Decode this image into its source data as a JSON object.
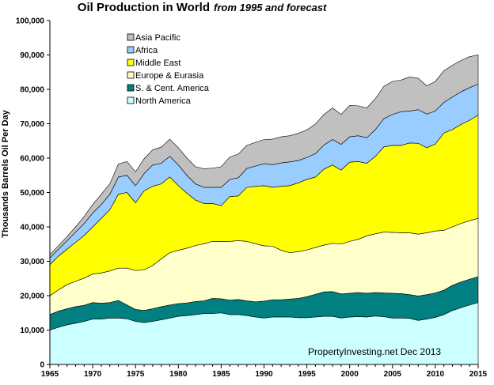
{
  "chart_data": {
    "type": "area",
    "stacked": true,
    "title": "Oil Production  in World",
    "subtitle": "from 1995 and forecast",
    "ylabel": "Thousands Barrels Oil Per Day",
    "xlabel": "",
    "annotation": "PropertyInvesting.net  Dec 2013",
    "xlim": [
      1965,
      2015
    ],
    "ylim": [
      0,
      100000
    ],
    "x_ticks": [
      "1965",
      "1970",
      "1975",
      "1980",
      "1985",
      "1990",
      "1995",
      "2000",
      "2005",
      "2010",
      "2015"
    ],
    "y_ticks": [
      "0",
      "10,000",
      "20,000",
      "30,000",
      "40,000",
      "50,000",
      "60,000",
      "70,000",
      "80,000",
      "90,000",
      "100,000"
    ],
    "grid": false,
    "legend_position": "top-left",
    "x": [
      1965,
      1966,
      1967,
      1968,
      1969,
      1970,
      1971,
      1972,
      1973,
      1974,
      1975,
      1976,
      1977,
      1978,
      1979,
      1980,
      1981,
      1982,
      1983,
      1984,
      1985,
      1986,
      1987,
      1988,
      1989,
      1990,
      1991,
      1992,
      1993,
      1994,
      1995,
      1996,
      1997,
      1998,
      1999,
      2000,
      2001,
      2002,
      2003,
      2004,
      2005,
      2006,
      2007,
      2008,
      2009,
      2010,
      2011,
      2012,
      2013,
      2014,
      2015
    ],
    "series": [
      {
        "name": "North America",
        "color": "#ccffff",
        "cumulative": [
          10000,
          10800,
          11500,
          12000,
          12500,
          13200,
          13200,
          13500,
          13500,
          13300,
          12500,
          12200,
          12500,
          13000,
          13500,
          14000,
          14200,
          14500,
          14800,
          14800,
          15000,
          14500,
          14500,
          14200,
          13800,
          13500,
          13800,
          13800,
          13800,
          13600,
          13600,
          13800,
          14000,
          14000,
          13500,
          13800,
          13900,
          13800,
          14100,
          13900,
          13500,
          13500,
          13400,
          12800,
          13200,
          13700,
          14500,
          15700,
          16500,
          17300,
          18000
        ]
      },
      {
        "name": "S. & Cent. America",
        "color": "#008080",
        "cumulative": [
          14500,
          15500,
          16200,
          16800,
          17200,
          18000,
          17800,
          18000,
          18600,
          17300,
          16000,
          15700,
          16200,
          16800,
          17300,
          17700,
          17900,
          18300,
          18500,
          19200,
          19100,
          18700,
          18900,
          18500,
          18200,
          18400,
          18800,
          18800,
          19000,
          19200,
          19700,
          20400,
          21100,
          21200,
          20500,
          20700,
          20900,
          20700,
          20900,
          20800,
          20700,
          20600,
          20300,
          19900,
          20300,
          20800,
          21600,
          23000,
          24000,
          24800,
          25500
        ]
      },
      {
        "name": "Europe & Eurasia",
        "color": "#ffffcc",
        "cumulative": [
          20000,
          21700,
          23200,
          24200,
          25100,
          26300,
          26600,
          27200,
          28000,
          28000,
          27300,
          27500,
          28800,
          30700,
          32500,
          33200,
          33800,
          34600,
          35100,
          35800,
          35800,
          35800,
          36000,
          35800,
          35100,
          34500,
          34400,
          33200,
          32500,
          32800,
          33300,
          34000,
          34700,
          35200,
          35000,
          35800,
          36400,
          37400,
          38000,
          38500,
          38400,
          38300,
          38300,
          37900,
          38300,
          38800,
          39000,
          40000,
          41000,
          41800,
          42500
        ]
      },
      {
        "name": "Middle East",
        "color": "#ffff00",
        "cumulative": [
          29000,
          31500,
          33500,
          35500,
          37500,
          40000,
          42500,
          45000,
          49500,
          50000,
          47000,
          50500,
          51800,
          52500,
          54500,
          52000,
          49800,
          47800,
          46800,
          46800,
          46200,
          48800,
          49000,
          51500,
          51800,
          52000,
          51500,
          51800,
          52000,
          52800,
          53800,
          54500,
          56800,
          58000,
          56500,
          58800,
          59000,
          58500,
          60500,
          63300,
          63700,
          63700,
          64400,
          64300,
          63000,
          64100,
          67300,
          68300,
          69800,
          71000,
          72500
        ]
      },
      {
        "name": "Africa",
        "color": "#99ccff",
        "cumulative": [
          31000,
          33500,
          36000,
          38500,
          41000,
          44000,
          46500,
          49500,
          54500,
          55000,
          52000,
          55500,
          58000,
          58500,
          60500,
          58000,
          55000,
          52500,
          51500,
          51500,
          51500,
          53800,
          54300,
          57000,
          57700,
          58400,
          58100,
          58600,
          58900,
          59300,
          60200,
          61300,
          63800,
          65400,
          64000,
          66200,
          66500,
          65900,
          68300,
          71500,
          72700,
          73500,
          73700,
          74100,
          72800,
          73700,
          76200,
          77800,
          79300,
          80500,
          81500
        ]
      },
      {
        "name": "Asia Pacific",
        "color": "#c0c0c0",
        "cumulative": [
          32000,
          34500,
          37200,
          40000,
          43000,
          46500,
          49500,
          52500,
          58300,
          59000,
          56000,
          59800,
          62400,
          63200,
          65500,
          63000,
          60000,
          57500,
          56900,
          57100,
          57500,
          60300,
          61200,
          63700,
          64600,
          65400,
          65500,
          66200,
          66500,
          67200,
          68200,
          69900,
          72700,
          74600,
          72700,
          75300,
          75200,
          74600,
          77300,
          80900,
          82300,
          82700,
          83600,
          83200,
          81000,
          82300,
          85400,
          87000,
          88400,
          89500,
          90000
        ]
      }
    ]
  }
}
